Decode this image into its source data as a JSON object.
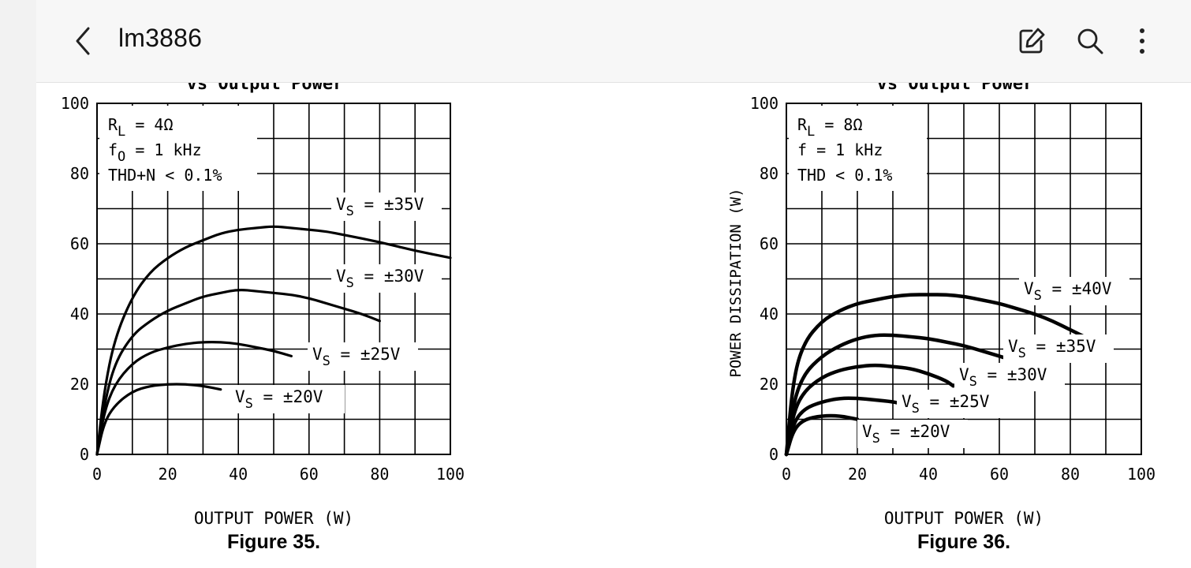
{
  "header": {
    "title": "lm3886",
    "icons": {
      "back": "chevron-left-icon",
      "edit": "edit-icon",
      "search": "search-icon",
      "more": "more-vertical-icon"
    }
  },
  "page": {
    "cut_title_left": "vs Output Power",
    "cut_title_right": "vs Output Power",
    "left_y_label": "",
    "colors": {
      "grid": "#000000",
      "curve": "#000000",
      "background": "#ffffff"
    }
  },
  "chart_data": [
    {
      "type": "line",
      "caption": "Figure 35.",
      "xlabel": "OUTPUT POWER (W)",
      "ylabel": "",
      "xlim": [
        0,
        100
      ],
      "ylim": [
        0,
        100
      ],
      "x_ticks": [
        0,
        20,
        40,
        60,
        80,
        100
      ],
      "y_ticks": [
        0,
        20,
        40,
        60,
        80,
        100
      ],
      "grid": true,
      "conditions": [
        "R_L = 4Ω",
        "f_O = 1 kHz",
        "THD+N < 0.1%"
      ],
      "series": [
        {
          "name": "V_S = ±35V",
          "x": [
            0,
            2,
            5,
            10,
            15,
            20,
            25,
            30,
            35,
            40,
            45,
            50,
            55,
            60,
            65,
            70,
            80,
            90,
            100
          ],
          "y": [
            0,
            18,
            33,
            45,
            52,
            56,
            59,
            61,
            63,
            64,
            64.5,
            65,
            64.5,
            64,
            63.5,
            62.5,
            60.5,
            58,
            56
          ]
        },
        {
          "name": "V_S = ±30V",
          "x": [
            0,
            2,
            5,
            10,
            15,
            20,
            25,
            30,
            35,
            40,
            45,
            50,
            55,
            60,
            65,
            70,
            75,
            80
          ],
          "y": [
            0,
            14,
            26,
            34,
            38,
            41,
            43,
            45,
            46,
            47,
            46.5,
            46,
            45.5,
            44.5,
            43,
            41.5,
            40,
            38
          ]
        },
        {
          "name": "V_S = ±25V",
          "x": [
            0,
            2,
            5,
            10,
            15,
            20,
            25,
            30,
            35,
            40,
            45,
            50,
            55
          ],
          "y": [
            0,
            12,
            20,
            26,
            29,
            30.5,
            31.5,
            32,
            32,
            31.5,
            30.5,
            29.5,
            28
          ]
        },
        {
          "name": "V_S = ±20V",
          "x": [
            0,
            2,
            5,
            10,
            15,
            20,
            25,
            30,
            35
          ],
          "y": [
            0,
            9,
            14,
            18,
            19.5,
            20,
            20,
            19.5,
            18.5
          ]
        }
      ]
    },
    {
      "type": "line",
      "caption": "Figure 36.",
      "xlabel": "OUTPUT POWER (W)",
      "ylabel": "POWER DISSIPATION (W)",
      "xlim": [
        0,
        100
      ],
      "ylim": [
        0,
        100
      ],
      "x_ticks": [
        0,
        20,
        40,
        60,
        80,
        100
      ],
      "y_ticks": [
        0,
        20,
        40,
        60,
        80,
        100
      ],
      "grid": true,
      "conditions": [
        "R_L = 8Ω",
        "f = 1 kHz",
        "THD < 0.1%"
      ],
      "series": [
        {
          "name": "V_S = ±40V",
          "x": [
            0,
            2,
            5,
            10,
            15,
            20,
            25,
            30,
            35,
            40,
            45,
            50,
            55,
            60,
            65,
            70,
            75,
            80,
            85
          ],
          "y": [
            0,
            22,
            32,
            38,
            41,
            43,
            44,
            45,
            45.5,
            45.5,
            45.5,
            45,
            44,
            43,
            41.5,
            40,
            38,
            35.5,
            33
          ]
        },
        {
          "name": "V_S = ±35V",
          "x": [
            0,
            2,
            5,
            10,
            15,
            20,
            25,
            30,
            35,
            40,
            45,
            50,
            55,
            60,
            63
          ],
          "y": [
            0,
            15,
            23,
            28,
            31,
            33,
            34,
            34,
            33.5,
            33,
            32,
            31,
            29.5,
            28,
            27
          ]
        },
        {
          "name": "V_S = ±30V",
          "x": [
            0,
            2,
            5,
            10,
            15,
            20,
            25,
            30,
            35,
            40,
            45,
            47
          ],
          "y": [
            0,
            12,
            18,
            22,
            24,
            25,
            25.5,
            25,
            24.5,
            23,
            21,
            19.5
          ]
        },
        {
          "name": "V_S = ±25V",
          "x": [
            0,
            2,
            5,
            10,
            15,
            20,
            25,
            30,
            32
          ],
          "y": [
            0,
            9,
            13,
            15,
            16,
            16,
            15.5,
            15,
            14.5
          ]
        },
        {
          "name": "V_S = ±20V",
          "x": [
            0,
            2,
            5,
            10,
            15,
            20
          ],
          "y": [
            0,
            7,
            10,
            11,
            11,
            10
          ]
        }
      ]
    }
  ]
}
